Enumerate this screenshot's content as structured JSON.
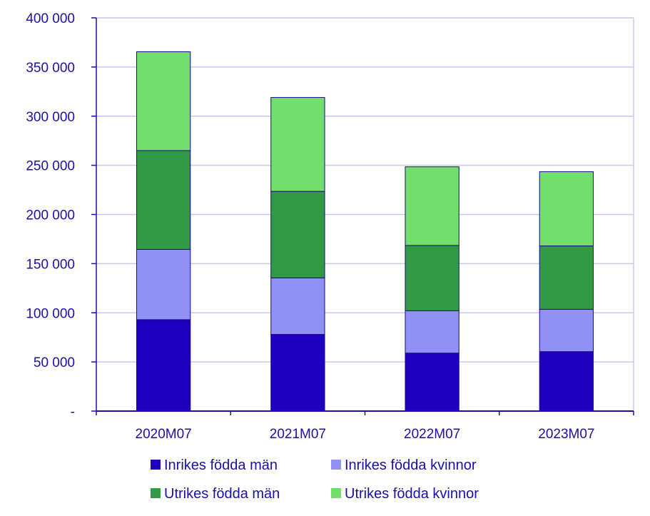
{
  "chart_data": {
    "type": "bar",
    "stacked": true,
    "categories": [
      "2020M07",
      "2021M07",
      "2022M07",
      "2023M07"
    ],
    "series": [
      {
        "name": "Inrikes födda män",
        "color": "#1f00c0",
        "values": [
          93000,
          78000,
          59000,
          60500
        ]
      },
      {
        "name": "Inrikes födda kvinnor",
        "color": "#9191f5",
        "values": [
          71500,
          57500,
          43000,
          43000
        ]
      },
      {
        "name": "Utrikes födda män",
        "color": "#329a46",
        "values": [
          100500,
          88000,
          66500,
          64500
        ]
      },
      {
        "name": "Utrikes födda kvinnor",
        "color": "#72de6c",
        "values": [
          100500,
          95500,
          80000,
          75500
        ]
      }
    ],
    "ylim": [
      0,
      400000
    ],
    "yticks": [
      0,
      50000,
      100000,
      150000,
      200000,
      250000,
      300000,
      350000,
      400000
    ],
    "ytick_labels": [
      "-",
      "50 000",
      "100 000",
      "150 000",
      "200 000",
      "250 000",
      "300 000",
      "350 000",
      "400 000"
    ],
    "grid": true,
    "legend_position": "bottom",
    "axis_color": "#1a0fa8",
    "grid_color": "#c8c8ee"
  }
}
